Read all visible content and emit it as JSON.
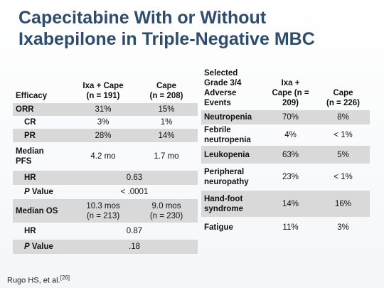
{
  "title": [
    "Capecitabine With or Without",
    "Ixabepilone in Triple-Negative MBC"
  ],
  "left_table": {
    "header": [
      [
        "Efficacy"
      ],
      [
        "Ixa + Cape",
        "(n = 191)"
      ],
      [
        "Cape",
        "(n = 208)"
      ]
    ],
    "rows": [
      [
        "ORR",
        "31%",
        "15%"
      ],
      [
        "CR",
        "3%",
        "1%"
      ],
      [
        "PR",
        "28%",
        "14%"
      ],
      [
        [
          "Median",
          "PFS"
        ],
        "4.2 mo",
        "1.7 mo"
      ],
      [
        "HR",
        "0.63"
      ],
      [
        "P Value",
        "< .0001"
      ],
      [
        "Median OS",
        [
          "10.3 mos",
          "(n = 213)"
        ],
        [
          "9.0 mos",
          "(n = 230)"
        ]
      ],
      [
        "HR",
        "0.87"
      ],
      [
        "P Value",
        ".18"
      ]
    ]
  },
  "right_table": {
    "header": [
      [
        "Selected",
        "Grade 3/4",
        "Adverse",
        "Events"
      ],
      [
        "Ixa +",
        "Cape (n =",
        "209)"
      ],
      [
        "Cape",
        "(n = 226)"
      ]
    ],
    "rows": [
      [
        "Neutropenia",
        "70%",
        "8%"
      ],
      [
        [
          "Febrile",
          "neutropenia"
        ],
        "4%",
        "< 1%"
      ],
      [
        "Leukopenia",
        "63%",
        "5%"
      ],
      [
        [
          "Peripheral",
          "neuropathy"
        ],
        "23%",
        "< 1%"
      ],
      [
        [
          "Hand-foot",
          "syndrome"
        ],
        "14%",
        "16%"
      ],
      [
        "Fatigue",
        "11%",
        "3%"
      ]
    ]
  },
  "footer": {
    "text": "Rugo HS, et al.",
    "ref": "[26]"
  }
}
